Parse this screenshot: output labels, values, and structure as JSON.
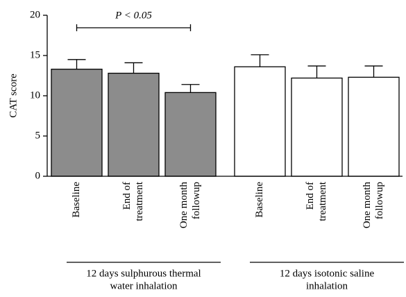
{
  "chart_data": {
    "type": "bar",
    "ylabel": "CAT score",
    "ylim": [
      0,
      20
    ],
    "yticks": [
      0,
      5,
      10,
      15,
      20
    ],
    "annotation": {
      "text": "P < 0.05",
      "from": 0,
      "to": 2,
      "group": 0
    },
    "groups": [
      {
        "name": [
          "12 days sulphurous thermal",
          "water inhalation"
        ],
        "color": "#8c8c8c",
        "categories": [
          [
            "Baseline"
          ],
          [
            "End of",
            "treatment"
          ],
          [
            "One month",
            "followup"
          ]
        ],
        "values": [
          13.3,
          12.8,
          10.4
        ],
        "errors": [
          1.2,
          1.3,
          1.0
        ]
      },
      {
        "name": [
          "12 days isotonic saline",
          "inhalation"
        ],
        "color": "#ffffff",
        "categories": [
          [
            "Baseline"
          ],
          [
            "End of",
            "treatment"
          ],
          [
            "One month",
            "followup"
          ]
        ],
        "values": [
          13.6,
          12.2,
          12.3
        ],
        "errors": [
          1.5,
          1.5,
          1.4
        ]
      }
    ]
  }
}
